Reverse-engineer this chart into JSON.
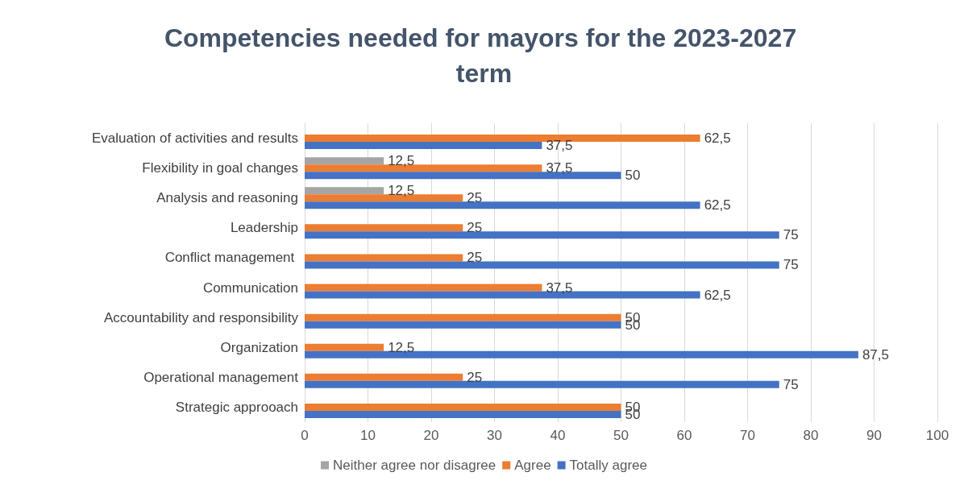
{
  "chart_data": {
    "type": "bar",
    "orientation": "horizontal",
    "title": "Competencies needed for mayors for the 2023-2027 term",
    "categories": [
      "Evaluation of activities and results",
      "Flexibility in goal changes",
      "Analysis and reasoning",
      "Leadership",
      "Conflict management ",
      "Communication",
      "Accountability and responsibility",
      "Organization",
      "Operational management",
      "Strategic approoach"
    ],
    "series": [
      {
        "name": "Neither agree nor disagree",
        "color": "#a5a5a5",
        "values": [
          null,
          12.5,
          12.5,
          null,
          null,
          null,
          null,
          null,
          null,
          null
        ],
        "value_labels": [
          null,
          "12,5",
          "12,5",
          null,
          null,
          null,
          null,
          null,
          null,
          null
        ]
      },
      {
        "name": "Agree",
        "color": "#ed7d31",
        "values": [
          62.5,
          37.5,
          25,
          25,
          25,
          37.5,
          50,
          12.5,
          25,
          50
        ],
        "value_labels": [
          "62,5",
          "37,5",
          "25",
          "25",
          "25",
          "37,5",
          "50",
          "12,5",
          "25",
          "50"
        ]
      },
      {
        "name": "Totally agree",
        "color": "#4472c4",
        "values": [
          37.5,
          50,
          62.5,
          75,
          75,
          62.5,
          50,
          87.5,
          75,
          50
        ],
        "value_labels": [
          "37,5",
          "50",
          "62,5",
          "75",
          "75",
          "62,5",
          "50",
          "87,5",
          "75",
          "50"
        ]
      }
    ],
    "xlim": [
      0,
      100
    ],
    "xticks": [
      0,
      10,
      20,
      30,
      40,
      50,
      60,
      70,
      80,
      90,
      100
    ],
    "grid": "x",
    "legend": "bottom"
  }
}
